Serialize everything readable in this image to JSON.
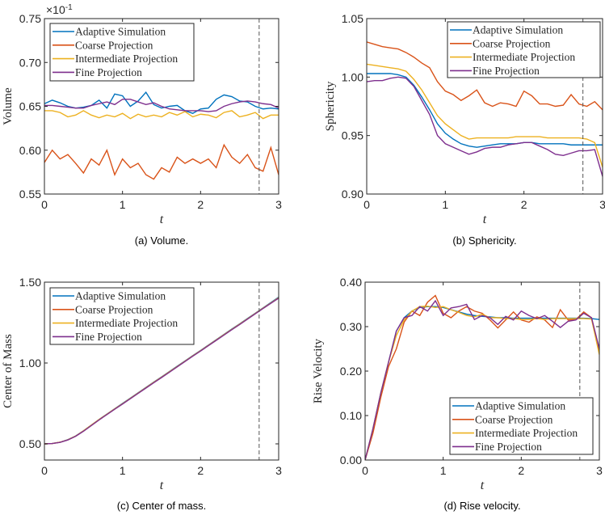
{
  "colors": {
    "adaptive": "#0072BD",
    "coarse": "#D95319",
    "intermediate": "#EDB120",
    "fine": "#7E2F8E",
    "marker": "#555555"
  },
  "chart_data": [
    {
      "type": "line",
      "caption": "(a) Volume.",
      "xlabel": "t",
      "ylabel": "Volume",
      "exponent_label": "×10",
      "exponent_power": "-1",
      "xlim": [
        0,
        3
      ],
      "ylim": [
        0.55,
        0.75
      ],
      "xticks": [
        "0",
        "1",
        "2",
        "3"
      ],
      "yticks": [
        "0.55",
        "0.60",
        "0.65",
        "0.70",
        "0.75"
      ],
      "marker_t": 2.75,
      "legend_position": "top-left",
      "x_step": 0.1,
      "series": [
        {
          "name": "Adaptive Simulation",
          "key": "adaptive",
          "values": [
            0.653,
            0.657,
            0.654,
            0.65,
            0.648,
            0.649,
            0.651,
            0.657,
            0.648,
            0.664,
            0.662,
            0.65,
            0.656,
            0.666,
            0.652,
            0.648,
            0.65,
            0.651,
            0.645,
            0.642,
            0.647,
            0.648,
            0.658,
            0.663,
            0.661,
            0.656,
            0.655,
            0.65,
            0.647,
            0.648,
            0.647
          ]
        },
        {
          "name": "Coarse Projection",
          "key": "coarse",
          "values": [
            0.586,
            0.6,
            0.59,
            0.595,
            0.585,
            0.574,
            0.59,
            0.583,
            0.6,
            0.572,
            0.59,
            0.58,
            0.585,
            0.572,
            0.567,
            0.58,
            0.575,
            0.592,
            0.585,
            0.59,
            0.585,
            0.59,
            0.58,
            0.606,
            0.592,
            0.585,
            0.595,
            0.58,
            0.576,
            0.603,
            0.572
          ]
        },
        {
          "name": "Intermediate Projection",
          "key": "intermediate",
          "values": [
            0.645,
            0.645,
            0.643,
            0.638,
            0.64,
            0.645,
            0.64,
            0.637,
            0.64,
            0.638,
            0.642,
            0.636,
            0.641,
            0.638,
            0.64,
            0.638,
            0.643,
            0.64,
            0.644,
            0.638,
            0.641,
            0.64,
            0.637,
            0.643,
            0.645,
            0.638,
            0.64,
            0.643,
            0.636,
            0.64,
            0.64
          ]
        },
        {
          "name": "Fine Projection",
          "key": "fine",
          "values": [
            0.651,
            0.651,
            0.65,
            0.649,
            0.648,
            0.648,
            0.651,
            0.653,
            0.655,
            0.652,
            0.658,
            0.658,
            0.655,
            0.652,
            0.654,
            0.65,
            0.647,
            0.646,
            0.645,
            0.645,
            0.645,
            0.644,
            0.645,
            0.65,
            0.653,
            0.655,
            0.656,
            0.655,
            0.653,
            0.652,
            0.648
          ]
        }
      ]
    },
    {
      "type": "line",
      "caption": "(b) Sphericity.",
      "xlabel": "t",
      "ylabel": "Sphericity",
      "xlim": [
        0,
        3
      ],
      "ylim": [
        0.9,
        1.05
      ],
      "xticks": [
        "0",
        "1",
        "2",
        "3"
      ],
      "yticks": [
        "0.90",
        "0.95",
        "1.00",
        "1.05"
      ],
      "marker_t": 2.75,
      "legend_position": "top-right",
      "x_step": 0.1,
      "series": [
        {
          "name": "Adaptive Simulation",
          "key": "adaptive",
          "values": [
            1.003,
            1.003,
            1.003,
            1.003,
            1.002,
            1.0,
            0.993,
            0.983,
            0.972,
            0.96,
            0.952,
            0.947,
            0.943,
            0.941,
            0.94,
            0.941,
            0.942,
            0.943,
            0.943,
            0.943,
            0.944,
            0.944,
            0.943,
            0.943,
            0.943,
            0.943,
            0.942,
            0.942,
            0.942,
            0.942,
            0.942
          ]
        },
        {
          "name": "Coarse Projection",
          "key": "coarse",
          "values": [
            1.03,
            1.028,
            1.026,
            1.025,
            1.024,
            1.021,
            1.017,
            1.012,
            1.008,
            0.996,
            0.988,
            0.985,
            0.98,
            0.984,
            0.989,
            0.978,
            0.975,
            0.978,
            0.977,
            0.975,
            0.988,
            0.984,
            0.977,
            0.977,
            0.975,
            0.976,
            0.985,
            0.977,
            0.975,
            0.979,
            0.972
          ]
        },
        {
          "name": "Intermediate Projection",
          "key": "intermediate",
          "values": [
            1.011,
            1.01,
            1.009,
            1.008,
            1.007,
            1.005,
            0.998,
            0.989,
            0.978,
            0.967,
            0.96,
            0.955,
            0.95,
            0.947,
            0.948,
            0.948,
            0.948,
            0.948,
            0.948,
            0.949,
            0.949,
            0.949,
            0.949,
            0.948,
            0.948,
            0.948,
            0.948,
            0.948,
            0.947,
            0.944,
            0.923
          ]
        },
        {
          "name": "Fine Projection",
          "key": "fine",
          "values": [
            0.996,
            0.997,
            0.997,
            0.999,
            1.0,
            0.999,
            0.992,
            0.98,
            0.968,
            0.95,
            0.943,
            0.94,
            0.937,
            0.934,
            0.936,
            0.939,
            0.94,
            0.94,
            0.942,
            0.943,
            0.944,
            0.944,
            0.941,
            0.938,
            0.934,
            0.933,
            0.935,
            0.937,
            0.937,
            0.938,
            0.915
          ]
        }
      ]
    },
    {
      "type": "line",
      "caption": "(c) Center of mass.",
      "xlabel": "t",
      "ylabel": "Center of Mass",
      "xlim": [
        0,
        3
      ],
      "ylim": [
        0.4,
        1.5
      ],
      "xticks": [
        "0",
        "1",
        "2",
        "3"
      ],
      "yticks": [
        "0.50",
        "1.00",
        "1.50"
      ],
      "marker_t": 2.75,
      "legend_position": "top-left",
      "x_step": 0.1,
      "series": [
        {
          "name": "Adaptive Simulation",
          "key": "adaptive",
          "values": [
            0.5,
            0.502,
            0.51,
            0.526,
            0.549,
            0.581,
            0.616,
            0.651,
            0.684,
            0.717,
            0.75,
            0.783,
            0.816,
            0.849,
            0.882,
            0.914,
            0.947,
            0.98,
            1.013,
            1.046,
            1.078,
            1.111,
            1.144,
            1.177,
            1.21,
            1.242,
            1.275,
            1.308,
            1.341,
            1.374,
            1.407
          ]
        },
        {
          "name": "Coarse Projection",
          "key": "coarse",
          "values": [
            0.5,
            0.502,
            0.51,
            0.525,
            0.548,
            0.58,
            0.615,
            0.65,
            0.683,
            0.716,
            0.748,
            0.781,
            0.814,
            0.847,
            0.88,
            0.912,
            0.945,
            0.978,
            1.011,
            1.044,
            1.076,
            1.109,
            1.142,
            1.175,
            1.208,
            1.24,
            1.273,
            1.306,
            1.339,
            1.371,
            1.404
          ]
        },
        {
          "name": "Intermediate Projection",
          "key": "intermediate",
          "values": [
            0.5,
            0.502,
            0.51,
            0.525,
            0.548,
            0.58,
            0.615,
            0.65,
            0.683,
            0.716,
            0.748,
            0.781,
            0.814,
            0.847,
            0.88,
            0.912,
            0.945,
            0.978,
            1.011,
            1.044,
            1.076,
            1.109,
            1.142,
            1.175,
            1.208,
            1.24,
            1.273,
            1.306,
            1.339,
            1.371,
            1.403
          ]
        },
        {
          "name": "Fine Projection",
          "key": "fine",
          "values": [
            0.5,
            0.502,
            0.509,
            0.524,
            0.547,
            0.578,
            0.613,
            0.648,
            0.681,
            0.714,
            0.746,
            0.779,
            0.812,
            0.845,
            0.878,
            0.91,
            0.943,
            0.976,
            1.009,
            1.042,
            1.074,
            1.107,
            1.14,
            1.173,
            1.206,
            1.238,
            1.271,
            1.304,
            1.337,
            1.369,
            1.401
          ]
        }
      ]
    },
    {
      "type": "line",
      "caption": "(d) Rise velocity.",
      "xlabel": "t",
      "ylabel": "Rise Velocity",
      "xlim": [
        0,
        3
      ],
      "ylim": [
        0.0,
        0.4
      ],
      "xticks": [
        "0",
        "1",
        "2",
        "3"
      ],
      "yticks": [
        "0.00",
        "0.10",
        "0.20",
        "0.30",
        "0.40"
      ],
      "marker_t": 2.75,
      "legend_position": "bottom-right",
      "x_step": 0.1,
      "series": [
        {
          "name": "Adaptive Simulation",
          "key": "adaptive",
          "values": [
            0,
            0.07,
            0.15,
            0.22,
            0.29,
            0.32,
            0.335,
            0.343,
            0.345,
            0.345,
            0.343,
            0.338,
            0.333,
            0.328,
            0.325,
            0.323,
            0.322,
            0.32,
            0.32,
            0.319,
            0.319,
            0.319,
            0.319,
            0.319,
            0.319,
            0.319,
            0.319,
            0.319,
            0.319,
            0.318,
            0.316
          ]
        },
        {
          "name": "Coarse Projection",
          "key": "coarse",
          "values": [
            0,
            0.06,
            0.14,
            0.21,
            0.25,
            0.31,
            0.335,
            0.325,
            0.355,
            0.37,
            0.33,
            0.32,
            0.335,
            0.345,
            0.335,
            0.33,
            0.315,
            0.297,
            0.315,
            0.333,
            0.315,
            0.31,
            0.322,
            0.315,
            0.298,
            0.338,
            0.315,
            0.316,
            0.333,
            0.32,
            0.245
          ]
        },
        {
          "name": "Intermediate Projection",
          "key": "intermediate",
          "values": [
            0,
            0.07,
            0.15,
            0.22,
            0.28,
            0.315,
            0.335,
            0.345,
            0.346,
            0.343,
            0.345,
            0.338,
            0.332,
            0.325,
            0.322,
            0.328,
            0.32,
            0.32,
            0.318,
            0.318,
            0.316,
            0.316,
            0.318,
            0.316,
            0.318,
            0.318,
            0.318,
            0.318,
            0.318,
            0.317,
            0.237
          ]
        },
        {
          "name": "Fine Projection",
          "key": "fine",
          "values": [
            0,
            0.07,
            0.15,
            0.22,
            0.29,
            0.32,
            0.325,
            0.345,
            0.335,
            0.358,
            0.325,
            0.342,
            0.345,
            0.35,
            0.316,
            0.325,
            0.32,
            0.305,
            0.323,
            0.315,
            0.335,
            0.325,
            0.318,
            0.325,
            0.312,
            0.298,
            0.312,
            0.315,
            0.33,
            0.32,
            0.25
          ]
        }
      ]
    }
  ]
}
